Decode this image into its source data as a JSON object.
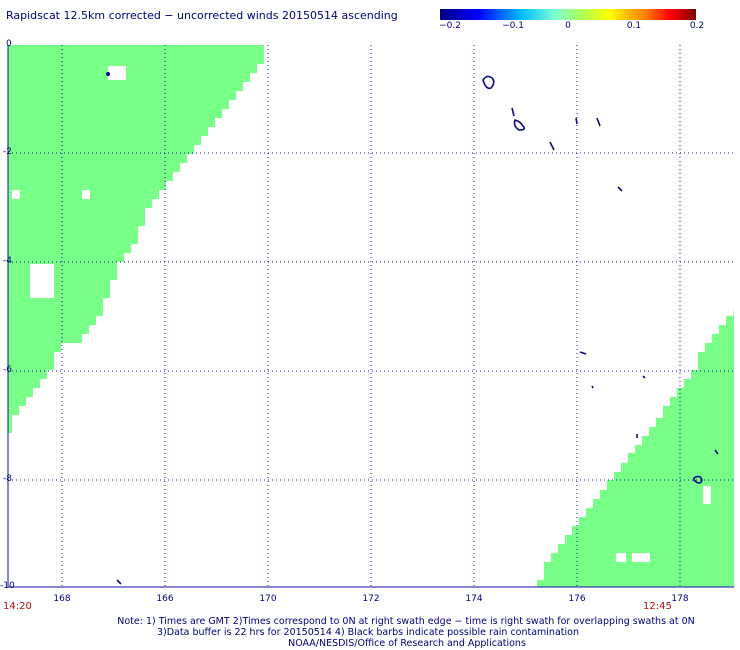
{
  "title": "Rapidscat 12.5km corrected − uncorrected winds 20150514 ascending",
  "colorbar": {
    "labels": [
      "−0.2",
      "−0.1",
      "0",
      "0.1",
      "0.2"
    ],
    "values": [
      -0.2,
      -0.1,
      0,
      0.1,
      0.2
    ]
  },
  "chart_data": {
    "type": "map",
    "x_ticks": [
      "168",
      "166",
      "170",
      "172",
      "174",
      "176",
      "178"
    ],
    "y_ticks": [
      "0",
      "-2",
      "-4",
      "-6",
      "-8",
      "-10"
    ],
    "swath_color": "#77ff88",
    "land_color": "#0a0a80",
    "grid": true
  },
  "times": {
    "left": "14:20",
    "right": "12:45"
  },
  "notes": [
    "Note: 1) Times are GMT 2)Times correspond to 0N at right swath edge − time is right swath for overlapping swaths at 0N",
    "3)Data buffer is 22 hrs for 20150514 4) Black barbs indicate possible rain contamination",
    "NOAA/NESDIS/Office of Research and Applications"
  ]
}
